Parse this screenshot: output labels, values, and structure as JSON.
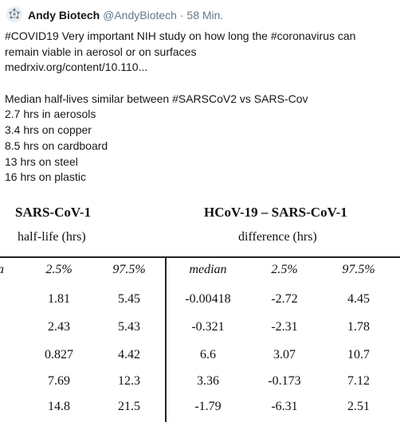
{
  "tweet": {
    "display_name": "Andy Biotech",
    "handle": "@AndyBiotech",
    "separator": "·",
    "timestamp": "58 Min.",
    "lines": [
      "#COVID19 Very important NIH study on how long the #coronavirus can",
      "remain viable in aerosol or on surfaces",
      "medrxiv.org/content/10.110..."
    ],
    "lines2": [
      "Median half-lives similar between #SARSCoV2 vs SARS-Cov",
      "2.7 hrs in aerosols",
      "3.4 hrs on copper",
      "8.5 hrs on cardboard",
      "13 hrs on steel",
      "16 hrs on plastic"
    ]
  },
  "table": {
    "left_header": "SARS-CoV-1",
    "left_subheader": "half-life (hrs)",
    "right_header": "HCoV-19 – SARS-CoV-1",
    "right_subheader": "difference (hrs)",
    "cut_glyph": "a",
    "columns": [
      "2.5%",
      "97.5%",
      "median",
      "2.5%",
      "97.5%"
    ],
    "rows": [
      [
        "1.81",
        "5.45",
        "-0.00418",
        "-2.72",
        "4.45"
      ],
      [
        "2.43",
        "5.43",
        "-0.321",
        "-2.31",
        "1.78"
      ],
      [
        "0.827",
        "4.42",
        "6.6",
        "3.07",
        "10.7"
      ],
      [
        "7.69",
        "12.3",
        "3.36",
        "-0.173",
        "7.12"
      ],
      [
        "14.8",
        "21.5",
        "-1.79",
        "-6.31",
        "2.51"
      ]
    ]
  }
}
